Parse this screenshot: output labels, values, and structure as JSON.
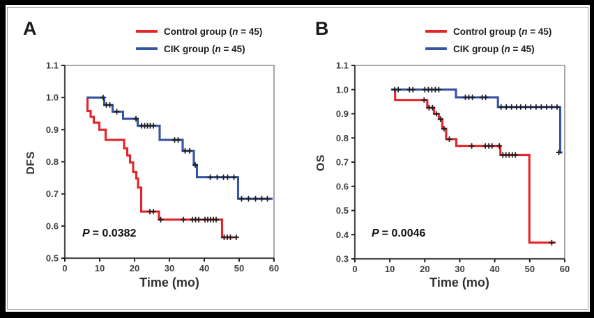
{
  "figure": {
    "background": "#ffffff",
    "outer_border_color": "#000000",
    "inner_border_color": "#9b9b9b"
  },
  "colors": {
    "control": "#e4262a",
    "cik": "#3554a4",
    "censor_mark": "#1c1c1c",
    "frame_light": "#8f8f8f",
    "frame_dark": "#4d4d4d",
    "tick_text": "#3f3f3f"
  },
  "legend": {
    "control_pre": "Control group (",
    "cik_pre": "CIK group (",
    "n": "n",
    "post": " = 45)"
  },
  "chart_data": [
    {
      "type": "line",
      "subtype": "kaplan-meier-step",
      "panel_label": "A",
      "xlabel": "Time (mo)",
      "ylabel": "DFS",
      "xlim": [
        0,
        60
      ],
      "ylim": [
        0.5,
        1.1
      ],
      "x_ticks": [
        "0",
        "10",
        "20",
        "30",
        "40",
        "50",
        "60"
      ],
      "y_ticks": [
        "1.1",
        "1.0",
        "0.9",
        "0.8",
        "0.7",
        "0.6",
        "0.5"
      ],
      "grid": false,
      "legend_position": "top",
      "p_label": "P",
      "p_value": "= 0.0382",
      "series": [
        {
          "name": "Control group (n = 45)",
          "color": "#e4262a",
          "steps": [
            [
              6.3,
              1.0
            ],
            [
              6.5,
              0.958
            ],
            [
              7.4,
              0.94
            ],
            [
              8.3,
              0.922
            ],
            [
              9.9,
              0.9
            ],
            [
              11.7,
              0.868
            ],
            [
              17.0,
              0.842
            ],
            [
              17.9,
              0.82
            ],
            [
              18.7,
              0.798
            ],
            [
              19.6,
              0.768
            ],
            [
              20.5,
              0.748
            ],
            [
              21.0,
              0.72
            ],
            [
              21.9,
              0.645
            ],
            [
              27.0,
              0.62
            ],
            [
              45.1,
              0.565
            ]
          ],
          "end_time": 49.3,
          "censors": [
            [
              24.4,
              0.645
            ],
            [
              25.4,
              0.645
            ],
            [
              27.5,
              0.62
            ],
            [
              34.0,
              0.62
            ],
            [
              36.6,
              0.62
            ],
            [
              37.5,
              0.62
            ],
            [
              38.4,
              0.62
            ],
            [
              40.2,
              0.62
            ],
            [
              41.0,
              0.62
            ],
            [
              41.8,
              0.62
            ],
            [
              42.6,
              0.62
            ],
            [
              43.4,
              0.62
            ],
            [
              45.7,
              0.565
            ],
            [
              46.6,
              0.565
            ],
            [
              47.5,
              0.565
            ],
            [
              49.2,
              0.565
            ]
          ]
        },
        {
          "name": "CIK group (n = 45)",
          "color": "#3554a4",
          "steps": [
            [
              6.3,
              1.0
            ],
            [
              11.3,
              0.977
            ],
            [
              13.7,
              0.956
            ],
            [
              16.7,
              0.934
            ],
            [
              20.9,
              0.912
            ],
            [
              27.2,
              0.868
            ],
            [
              33.8,
              0.834
            ],
            [
              37.0,
              0.79
            ],
            [
              37.9,
              0.752
            ],
            [
              49.7,
              0.685
            ]
          ],
          "end_time": 59.6,
          "censors": [
            [
              11.0,
              1.0
            ],
            [
              11.9,
              0.977
            ],
            [
              12.9,
              0.977
            ],
            [
              14.9,
              0.956
            ],
            [
              20.4,
              0.934
            ],
            [
              22.0,
              0.912
            ],
            [
              22.9,
              0.912
            ],
            [
              23.7,
              0.912
            ],
            [
              24.5,
              0.912
            ],
            [
              25.4,
              0.912
            ],
            [
              31.5,
              0.868
            ],
            [
              32.5,
              0.868
            ],
            [
              34.5,
              0.834
            ],
            [
              35.8,
              0.834
            ],
            [
              37.4,
              0.79
            ],
            [
              41.7,
              0.752
            ],
            [
              43.7,
              0.752
            ],
            [
              45.5,
              0.752
            ],
            [
              46.7,
              0.752
            ],
            [
              48.5,
              0.752
            ],
            [
              50.7,
              0.685
            ],
            [
              52.7,
              0.685
            ],
            [
              54.7,
              0.685
            ],
            [
              56.5,
              0.685
            ],
            [
              58.1,
              0.685
            ]
          ]
        }
      ]
    },
    {
      "type": "line",
      "subtype": "kaplan-meier-step",
      "panel_label": "B",
      "xlabel": "Time (mo)",
      "ylabel": "OS",
      "xlim": [
        0,
        60
      ],
      "ylim": [
        0.3,
        1.1
      ],
      "x_ticks": [
        "0",
        "10",
        "20",
        "30",
        "40",
        "50",
        "60"
      ],
      "y_ticks": [
        "1.1",
        "1.0",
        "0.9",
        "0.8",
        "0.7",
        "0.6",
        "0.5",
        "0.4",
        "0.3"
      ],
      "grid": false,
      "legend_position": "top",
      "p_label": "P",
      "p_value": "= 0.0046",
      "series": [
        {
          "name": "Control group (n = 45)",
          "color": "#e4262a",
          "steps": [
            [
              11.0,
              1.0
            ],
            [
              11.5,
              0.957
            ],
            [
              20.7,
              0.925
            ],
            [
              22.6,
              0.9
            ],
            [
              24.0,
              0.878
            ],
            [
              25.0,
              0.838
            ],
            [
              26.1,
              0.795
            ],
            [
              29.0,
              0.767
            ],
            [
              41.6,
              0.73
            ],
            [
              49.9,
              0.367
            ]
          ],
          "end_time": 57.4,
          "censors": [
            [
              19.8,
              0.957
            ],
            [
              21.2,
              0.925
            ],
            [
              22.2,
              0.925
            ],
            [
              23.3,
              0.9
            ],
            [
              24.5,
              0.878
            ],
            [
              25.5,
              0.838
            ],
            [
              27.0,
              0.795
            ],
            [
              33.4,
              0.767
            ],
            [
              37.3,
              0.767
            ],
            [
              38.3,
              0.767
            ],
            [
              39.2,
              0.767
            ],
            [
              41.3,
              0.767
            ],
            [
              42.3,
              0.73
            ],
            [
              43.2,
              0.73
            ],
            [
              44.1,
              0.73
            ],
            [
              45.0,
              0.73
            ],
            [
              45.9,
              0.73
            ],
            [
              56.3,
              0.367
            ]
          ]
        },
        {
          "name": "CIK group (n = 45)",
          "color": "#3554a4",
          "steps": [
            [
              10.3,
              1.0
            ],
            [
              28.9,
              0.968
            ],
            [
              40.9,
              0.928
            ],
            [
              58.7,
              0.74
            ]
          ],
          "end_time": 59.3,
          "censors": [
            [
              11.4,
              1.0
            ],
            [
              12.4,
              1.0
            ],
            [
              15.6,
              1.0
            ],
            [
              16.6,
              1.0
            ],
            [
              20.0,
              1.0
            ],
            [
              21.0,
              1.0
            ],
            [
              22.0,
              1.0
            ],
            [
              23.0,
              1.0
            ],
            [
              24.0,
              1.0
            ],
            [
              31.6,
              0.968
            ],
            [
              32.6,
              0.968
            ],
            [
              33.6,
              0.968
            ],
            [
              36.4,
              0.968
            ],
            [
              37.4,
              0.968
            ],
            [
              41.8,
              0.928
            ],
            [
              43.3,
              0.928
            ],
            [
              44.8,
              0.928
            ],
            [
              46.2,
              0.928
            ],
            [
              47.4,
              0.928
            ],
            [
              48.8,
              0.928
            ],
            [
              50.3,
              0.928
            ],
            [
              51.8,
              0.928
            ],
            [
              53.3,
              0.928
            ],
            [
              54.8,
              0.928
            ],
            [
              56.3,
              0.928
            ],
            [
              57.8,
              0.928
            ],
            [
              58.3,
              0.74
            ]
          ]
        }
      ]
    }
  ]
}
